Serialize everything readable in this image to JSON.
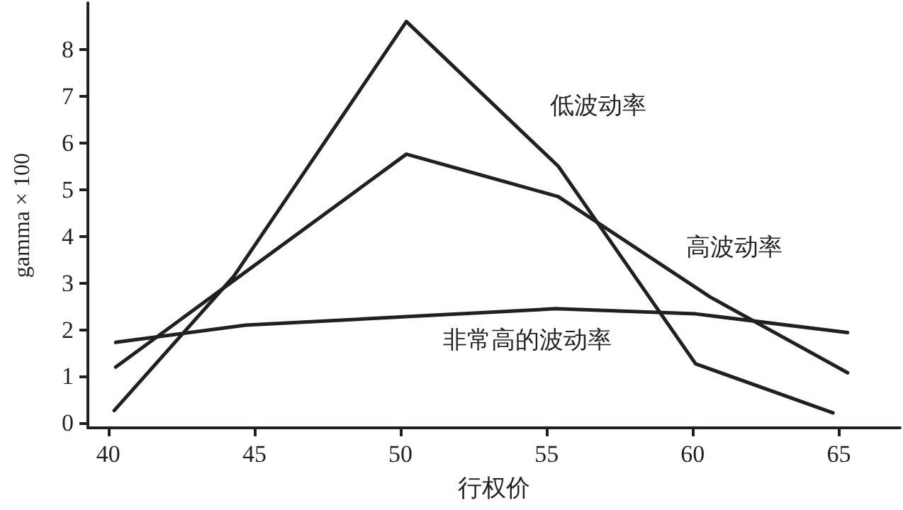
{
  "chart_data": {
    "type": "line",
    "xlabel": "行权价",
    "ylabel": "gamma × 100",
    "xlim": [
      39.3,
      67.1
    ],
    "xticks": [
      40,
      45,
      50,
      55,
      60,
      65
    ],
    "ylim": [
      -0.1,
      9
    ],
    "yticks": [
      0,
      1,
      2,
      3,
      4,
      5,
      6,
      7,
      8
    ],
    "grid": false,
    "marker": "none",
    "line_style": "solid",
    "series": [
      {
        "name": "低波动率",
        "color": "#231f20",
        "x": [
          40.2,
          44.3,
          50.2,
          55.4,
          60.1,
          64.8
        ],
        "values": [
          0.27,
          3.15,
          8.6,
          5.5,
          1.27,
          0.22
        ]
      },
      {
        "name": "高波动率",
        "color": "#231f20",
        "x": [
          40.25,
          50.2,
          55.4,
          60.6,
          65.3
        ],
        "values": [
          1.2,
          5.76,
          4.85,
          2.7,
          1.08
        ]
      },
      {
        "name": "非常高的波动率",
        "color": "#231f20",
        "x": [
          40.25,
          44.7,
          50.2,
          55.3,
          60.1,
          65.3
        ],
        "values": [
          1.73,
          2.1,
          2.28,
          2.45,
          2.34,
          1.94
        ]
      }
    ]
  }
}
